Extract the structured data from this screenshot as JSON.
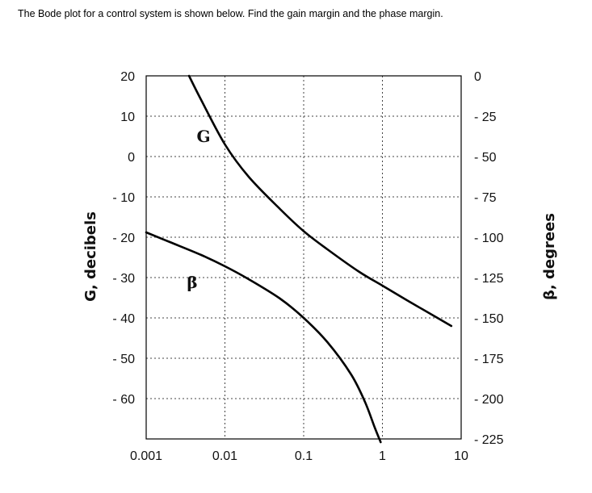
{
  "question": "The Bode plot for a control system is shown below. Find the gain margin and the phase margin.",
  "chart_data": {
    "type": "line",
    "title": "",
    "xscale": "log",
    "x_ticks": [
      "0.001",
      "0.01",
      "0.1",
      "1",
      "10"
    ],
    "xlim": [
      0.001,
      10
    ],
    "left_axis": {
      "label": "G, decibels",
      "ticks": [
        "20",
        "10",
        "0",
        "- 10",
        "- 20",
        "- 30",
        "- 40",
        "- 50",
        "- 60"
      ],
      "tick_values": [
        20,
        10,
        0,
        -10,
        -20,
        -30,
        -40,
        -50,
        -60
      ],
      "range": [
        -70,
        20
      ]
    },
    "right_axis": {
      "label": "β, degrees",
      "ticks": [
        "0",
        "- 25",
        "- 50",
        "- 75",
        "- 100",
        "- 125",
        "- 150",
        "- 175",
        "- 200",
        "- 225"
      ],
      "tick_values": [
        0,
        -25,
        -50,
        -75,
        -100,
        -125,
        -150,
        -175,
        -200,
        -225
      ],
      "range": [
        -225,
        0
      ]
    },
    "grid": true,
    "series": [
      {
        "name": "G",
        "axis": "left",
        "x": [
          0.0035,
          0.005,
          0.01,
          0.02,
          0.05,
          0.1,
          0.2,
          0.5,
          1,
          2,
          5,
          7.5
        ],
        "y": [
          20,
          14,
          3,
          -5,
          -13,
          -18.5,
          -23,
          -28.5,
          -32,
          -35.5,
          -40,
          -42
        ]
      },
      {
        "name": "β",
        "axis": "right",
        "x": [
          0.001,
          0.002,
          0.005,
          0.01,
          0.02,
          0.05,
          0.1,
          0.2,
          0.4,
          0.6,
          0.8,
          0.95
        ],
        "y": [
          -97,
          -103,
          -111,
          -118,
          -126,
          -138,
          -150,
          -165,
          -185,
          -202,
          -218,
          -227
        ]
      }
    ]
  }
}
